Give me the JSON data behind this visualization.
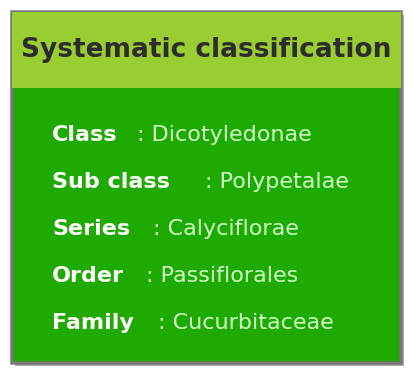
{
  "title": "Systematic classification",
  "title_bg_color": "#9ACD32",
  "title_text_color": "#2d2d2d",
  "main_bg_color": "#1faa00",
  "shadow_color": "#bbbbbb",
  "rows": [
    {
      "bold": "Class",
      "normal": ": Dicotyledonae"
    },
    {
      "bold": "Sub class",
      "normal": ": Polypetalae"
    },
    {
      "bold": "Series",
      "normal": ": Calyciflorae"
    },
    {
      "bold": "Order",
      "normal": ": Passiflorales"
    },
    {
      "bold": "Family",
      "normal": ": Cucurbitaceae"
    }
  ],
  "bold_color": "#ffffff",
  "normal_color": "#ccffcc",
  "title_fontsize": 19,
  "row_fontsize": 16,
  "fig_bg": "#ffffff",
  "fig_width": 4.13,
  "fig_height": 3.75,
  "dpi": 100
}
